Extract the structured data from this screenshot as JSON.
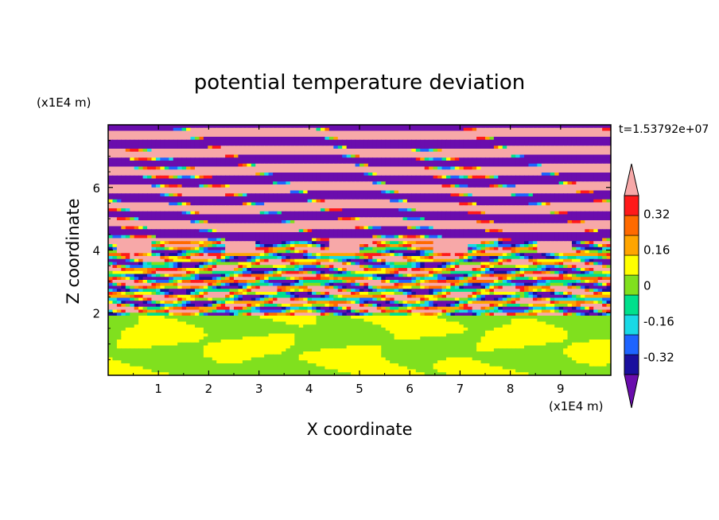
{
  "chart_data": {
    "type": "heatmap",
    "title": "potential temperature deviation",
    "xlabel": "X coordinate",
    "ylabel": "Z coordinate",
    "x_unit": "(x1E4 m)",
    "y_unit": "(x1E4 m)",
    "time_label": "t=1.53792e+07",
    "xlim": [
      0,
      10
    ],
    "ylim": [
      0,
      8
    ],
    "x_ticks": [
      "1",
      "2",
      "3",
      "4",
      "5",
      "6",
      "7",
      "8",
      "9"
    ],
    "y_ticks": [
      "2",
      "4",
      "6"
    ],
    "colorbar": {
      "levels": [
        -0.4,
        -0.32,
        -0.24,
        -0.16,
        -0.08,
        0,
        0.08,
        0.16,
        0.24,
        0.32,
        0.4
      ],
      "labels": [
        "0.32",
        "0.16",
        "0",
        "-0.16",
        "-0.32"
      ],
      "label_values": [
        0.32,
        0.16,
        0,
        -0.16,
        -0.32
      ],
      "colors": [
        "#6a0dad",
        "#1a0f9e",
        "#1e64ff",
        "#19d9e6",
        "#00e08c",
        "#80e01e",
        "#ffff00",
        "#ffa500",
        "#ff6a00",
        "#ff1a1a",
        "#f7a8a8"
      ],
      "extend": "both"
    },
    "regions": [
      {
        "z_range": [
          0,
          2
        ],
        "description_values": [
          0,
          0.08
        ]
      },
      {
        "z_range": [
          2,
          4.2
        ],
        "description_values": [
          -0.4,
          0.4
        ]
      },
      {
        "z_range": [
          4.2,
          8
        ],
        "description_values": [
          -0.4,
          0.4
        ]
      }
    ]
  }
}
